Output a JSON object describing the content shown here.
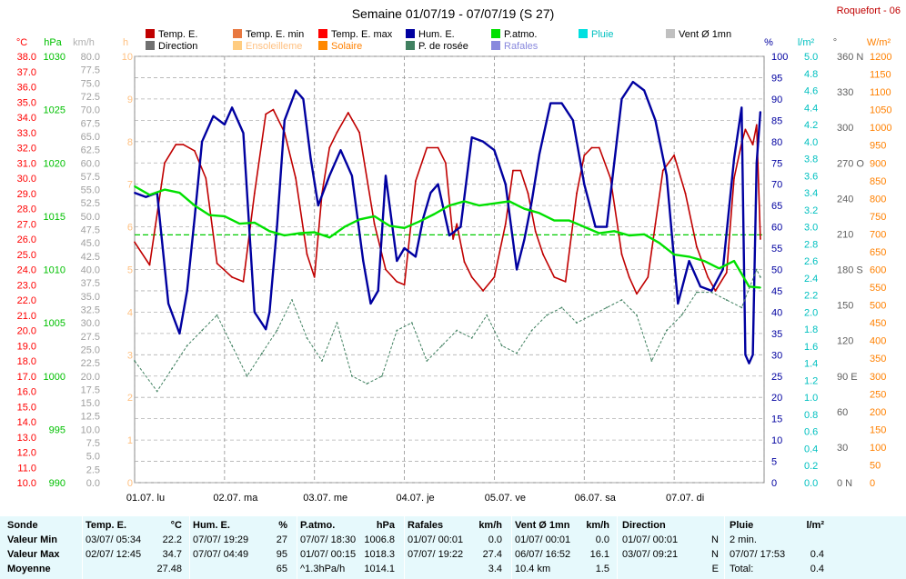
{
  "title": "Semaine 01/07/19 - 07/07/19 (S 27)",
  "station": "Roquefort - 06",
  "legend": [
    {
      "label": "Temp. E.",
      "color": "#c00000",
      "kind": "box"
    },
    {
      "label": "Temp. E. min",
      "color": "#e87840",
      "kind": "box"
    },
    {
      "label": "Temp. E. max",
      "color": "#ff0000",
      "kind": "box"
    },
    {
      "label": "Hum. E.",
      "color": "#0000a0",
      "kind": "box"
    },
    {
      "label": "P.atmo.",
      "color": "#00e000",
      "kind": "box"
    },
    {
      "label": "Pluie",
      "color": "#00e0e0",
      "kind": "box"
    },
    {
      "label": "Vent Ø 1mn",
      "color": "#c0c0c0",
      "kind": "box"
    },
    {
      "label": "Direction",
      "color": "#707070",
      "kind": "box"
    },
    {
      "label": "Ensoleilleme",
      "color": "#ffcc80",
      "kind": "box"
    },
    {
      "label": "Solaire",
      "color": "#ff8800",
      "kind": "box"
    },
    {
      "label": "P. de rosée",
      "color": "#408060",
      "kind": "box"
    },
    {
      "label": "Rafales",
      "color": "#8888dd",
      "kind": "box"
    }
  ],
  "axis_units": {
    "temp": "°C",
    "press": "hPa",
    "wind": "km/h",
    "sun": "h",
    "hum": "%",
    "rain": "l/m²",
    "dir": "°",
    "solar": "W/m²"
  },
  "stats_table": {
    "headers": [
      "Sonde",
      "Temp. E.",
      "°C",
      "Hum. E.",
      "%",
      "P.atmo.",
      "hPa",
      "Rafales",
      "km/h",
      "Vent Ø 1mn",
      "km/h",
      "Direction",
      "",
      "Pluie",
      "l/m²"
    ],
    "rows": [
      [
        "Valeur Min",
        "03/07/  05:34",
        "22.2",
        "07/07/  19:29",
        "27",
        "07/07/  18:30",
        "1006.8",
        "01/07/  00:01",
        "0.0",
        "01/07/  00:01",
        "0.0",
        "01/07/  00:01",
        "N",
        "2 min.",
        ""
      ],
      [
        "Valeur Max",
        "02/07/  12:45",
        "34.7",
        "07/07/  04:49",
        "95",
        "01/07/  00:15",
        "1018.3",
        "07/07/  19:22",
        "27.4",
        "06/07/  16:52",
        "16.1",
        "03/07/  09:21",
        "N",
        "07/07/  17:53",
        "0.4"
      ],
      [
        "Moyenne",
        "",
        "27.48",
        "",
        "65",
        "^1.3hPa/h",
        "1014.1",
        "",
        "3.4",
        "10.4 km",
        "1.5",
        "",
        "E",
        "Total:",
        "0.4"
      ]
    ]
  },
  "chart_data": {
    "type": "line",
    "title": "Semaine 01/07/19 - 07/07/19 (S 27)",
    "x_labels": [
      "01.07. lu",
      "02.07. ma",
      "03.07. me",
      "04.07. je",
      "05.07. ve",
      "06.07. sa",
      "07.07. di"
    ],
    "x_unit": "hours from 01/07 00:00",
    "axes": {
      "temp": {
        "unit": "°C",
        "range": [
          10,
          38
        ],
        "step": 1
      },
      "press": {
        "unit": "hPa",
        "range": [
          990,
          1030
        ],
        "step": 5
      },
      "wind": {
        "unit": "km/h",
        "range": [
          0,
          80
        ],
        "step": 2.5
      },
      "sun": {
        "unit": "h",
        "range": [
          0,
          10
        ],
        "step": 1
      },
      "hum": {
        "unit": "%",
        "range": [
          0,
          100
        ],
        "step": 5
      },
      "rain": {
        "unit": "l/m²",
        "range": [
          0,
          5
        ],
        "step": 0.2
      },
      "dir": {
        "unit": "°",
        "range": [
          0,
          360
        ],
        "step": 30,
        "labels": {
          "0": "0 N",
          "90": "90 E",
          "180": "180 S",
          "270": "270 O",
          "360": "360 N"
        }
      },
      "solar": {
        "unit": "W/m²",
        "range": [
          0,
          1200
        ],
        "step": 50
      }
    },
    "reference_line": {
      "axis": "press",
      "value": 1013.25,
      "color": "#00cc00"
    },
    "series": [
      {
        "name": "Temp. E.",
        "axis": "temp",
        "color": "#c00000",
        "x": [
          0,
          4,
          8,
          11,
          13,
          16,
          19,
          22,
          26,
          29,
          32,
          35,
          37,
          40,
          43,
          46,
          48,
          50,
          52,
          54,
          57,
          60,
          64,
          67,
          70,
          72,
          75,
          78,
          81,
          83,
          85,
          86,
          88,
          90,
          93,
          96,
          99,
          101,
          103,
          105,
          107,
          109,
          112,
          115,
          118,
          120,
          122,
          124,
          127,
          130,
          132,
          134,
          137,
          139,
          141,
          144,
          147,
          150,
          153,
          155,
          158,
          160,
          162,
          163,
          165,
          166,
          167
        ],
        "y": [
          25.8,
          24.3,
          31,
          32.2,
          32.2,
          31.8,
          30,
          24.4,
          23.5,
          23.2,
          29,
          34.2,
          34.5,
          33,
          30,
          25,
          23.5,
          29,
          32,
          33,
          34.3,
          33,
          27,
          24,
          23.2,
          23,
          29.8,
          32,
          32,
          31,
          26,
          27,
          24.5,
          23.5,
          22.6,
          23.5,
          27,
          30.5,
          30.5,
          29,
          26.5,
          25,
          23.5,
          23.2,
          29,
          31.5,
          32,
          32,
          30,
          25,
          23.5,
          22.4,
          23.5,
          27,
          30.5,
          31.5,
          29,
          25.5,
          23.5,
          22.6,
          23.8,
          30,
          32.3,
          33.2,
          32.2,
          33.5,
          26
        ]
      },
      {
        "name": "Hum. E.",
        "axis": "hum",
        "color": "#0000a0",
        "x": [
          0,
          3,
          6,
          9,
          12,
          14,
          16,
          18,
          21,
          24,
          26,
          29,
          32,
          35,
          36,
          38,
          40,
          43,
          45,
          47,
          49,
          52,
          55,
          58,
          61,
          63,
          65,
          67,
          70,
          72,
          75,
          77,
          79,
          81,
          84,
          87,
          90,
          93,
          96,
          99,
          102,
          104,
          106,
          108,
          111,
          114,
          117,
          120,
          123,
          126,
          130,
          133,
          136,
          139,
          142,
          145,
          148,
          151,
          154,
          157,
          160,
          162,
          163,
          164,
          165,
          166,
          167
        ],
        "y": [
          68,
          67,
          68,
          42,
          35,
          45,
          62,
          80,
          86,
          84,
          88,
          82,
          40,
          36,
          40,
          60,
          85,
          92,
          90,
          76,
          65,
          72,
          78,
          72,
          52,
          42,
          45,
          72,
          52,
          55,
          53,
          62,
          68,
          70,
          58,
          60,
          81,
          80,
          78,
          70,
          50,
          57,
          66,
          77,
          89,
          89,
          85,
          70,
          60,
          60,
          90,
          94,
          92,
          85,
          72,
          42,
          52,
          46,
          45,
          50,
          76,
          88,
          30,
          28,
          30,
          75,
          87
        ]
      },
      {
        "name": "P.atmo.",
        "axis": "press",
        "color": "#00e000",
        "x": [
          0,
          4,
          8,
          12,
          16,
          20,
          24,
          28,
          32,
          36,
          40,
          44,
          48,
          52,
          56,
          60,
          64,
          68,
          72,
          76,
          80,
          84,
          88,
          92,
          96,
          100,
          104,
          108,
          112,
          116,
          120,
          124,
          128,
          132,
          136,
          140,
          144,
          148,
          152,
          156,
          160,
          164,
          167
        ],
        "y": [
          1017.8,
          1017.0,
          1017.5,
          1017.2,
          1016.0,
          1015.1,
          1015.0,
          1014.3,
          1014.4,
          1013.6,
          1013.2,
          1013.4,
          1013.5,
          1013.0,
          1014.0,
          1014.7,
          1015.0,
          1014.1,
          1013.9,
          1014.5,
          1015.2,
          1016.0,
          1016.4,
          1016.0,
          1016.2,
          1016.4,
          1015.7,
          1015.3,
          1014.6,
          1014.6,
          1014.0,
          1013.4,
          1013.6,
          1013.2,
          1013.3,
          1012.5,
          1011.4,
          1011.2,
          1010.8,
          1010.1,
          1010.8,
          1008.4,
          1008.3
        ]
      },
      {
        "name": "P. de rosée",
        "axis": "temp",
        "color": "#408060",
        "x": [
          0,
          6,
          10,
          14,
          18,
          22,
          26,
          30,
          34,
          38,
          42,
          46,
          50,
          54,
          58,
          62,
          66,
          70,
          74,
          78,
          82,
          86,
          90,
          94,
          98,
          102,
          106,
          110,
          114,
          118,
          122,
          126,
          130,
          134,
          138,
          142,
          146,
          150,
          154,
          158,
          162,
          166,
          167
        ],
        "y": [
          18.0,
          16.0,
          17.5,
          19.0,
          20.0,
          21.0,
          19.0,
          17.0,
          18.5,
          20.0,
          22.0,
          19.5,
          18.0,
          20.5,
          17.0,
          16.5,
          17.0,
          20.0,
          20.5,
          18.0,
          19.0,
          20.0,
          19.5,
          21.0,
          19.0,
          18.5,
          20.0,
          21.0,
          21.5,
          20.5,
          21.0,
          21.5,
          22.0,
          21.0,
          18.0,
          20.0,
          21.0,
          22.5,
          22.5,
          22.0,
          21.5,
          24.0,
          23.5
        ]
      }
    ]
  }
}
